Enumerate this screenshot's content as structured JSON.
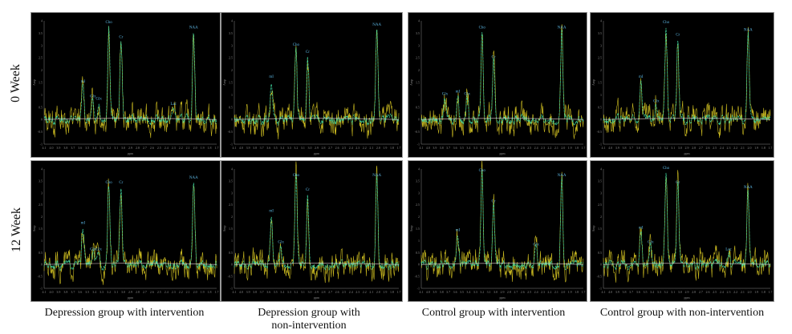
{
  "row_labels": [
    "0 Week",
    "12 Week"
  ],
  "column_labels": [
    "Depression group with intervention",
    "Depression group with non-intervention",
    "Control group with intervention",
    "Control group with non-intervention"
  ],
  "colors": {
    "raw": "#c8b820",
    "fit": "#3fd6a0",
    "baseline": "#e8d0d0",
    "peak_label": "#5ab4e0",
    "axis": "#888888"
  },
  "chart_data": [
    {
      "type": "line",
      "title": "Depression group with intervention, 0 Week",
      "xlabel": "ppm",
      "ylabel": "Amp",
      "xlim": [
        4.1,
        1.7
      ],
      "ylim": [
        -1,
        4
      ],
      "peaks": [
        {
          "label": "mI",
          "ppm": 3.56,
          "height": 1.4
        },
        {
          "label": "Glx",
          "ppm": 3.42,
          "height": 0.8
        },
        {
          "label": "Glx",
          "ppm": 3.34,
          "height": 0.7
        },
        {
          "label": "Cho",
          "ppm": 3.2,
          "height": 3.8
        },
        {
          "label": "Cr",
          "ppm": 3.03,
          "height": 3.2
        },
        {
          "label": "Lac",
          "ppm": 2.3,
          "height": 0.5
        },
        {
          "label": "NAA",
          "ppm": 2.02,
          "height": 3.6
        }
      ]
    },
    {
      "type": "line",
      "title": "Depression group with non-intervention, 0 Week",
      "xlabel": "ppm",
      "ylabel": "Amp",
      "xlim": [
        4.1,
        1.7
      ],
      "ylim": [
        -1,
        4
      ],
      "peaks": [
        {
          "label": "mI",
          "ppm": 3.56,
          "height": 1.6
        },
        {
          "label": "Cho",
          "ppm": 3.2,
          "height": 2.9
        },
        {
          "label": "Cr",
          "ppm": 3.03,
          "height": 2.6
        },
        {
          "label": "NAA",
          "ppm": 2.02,
          "height": 3.7
        }
      ]
    },
    {
      "type": "line",
      "title": "Control group with intervention, 0 Week",
      "xlabel": "ppm",
      "ylabel": "Amp",
      "xlim": [
        4.1,
        1.7
      ],
      "ylim": [
        -1,
        4
      ],
      "peaks": [
        {
          "label": "Glx",
          "ppm": 3.75,
          "height": 0.9
        },
        {
          "label": "mI",
          "ppm": 3.56,
          "height": 1.0
        },
        {
          "label": "Glx",
          "ppm": 3.42,
          "height": 0.9
        },
        {
          "label": "Cho",
          "ppm": 3.2,
          "height": 3.6
        },
        {
          "label": "Cr",
          "ppm": 3.03,
          "height": 2.4
        },
        {
          "label": "NAA",
          "ppm": 2.02,
          "height": 3.6
        }
      ]
    },
    {
      "type": "line",
      "title": "Control group with non-intervention, 0 Week",
      "xlabel": "ppm",
      "ylabel": "Amp",
      "xlim": [
        4.1,
        1.7
      ],
      "ylim": [
        -1,
        4
      ],
      "peaks": [
        {
          "label": "mI",
          "ppm": 3.56,
          "height": 1.6
        },
        {
          "label": "Glx",
          "ppm": 3.34,
          "height": 0.6
        },
        {
          "label": "Cho",
          "ppm": 3.2,
          "height": 3.8
        },
        {
          "label": "Cr",
          "ppm": 3.03,
          "height": 3.3
        },
        {
          "label": "NAA",
          "ppm": 2.02,
          "height": 3.5
        }
      ]
    },
    {
      "type": "line",
      "title": "Depression group with intervention, 12 Week",
      "xlabel": "ppm",
      "ylabel": "Amp",
      "xlim": [
        4.1,
        1.7
      ],
      "ylim": [
        -1,
        4
      ],
      "peaks": [
        {
          "label": "mI",
          "ppm": 3.56,
          "height": 1.6
        },
        {
          "label": "Glx",
          "ppm": 3.42,
          "height": 0.5
        },
        {
          "label": "Glx",
          "ppm": 3.34,
          "height": 0.5
        },
        {
          "label": "Cho",
          "ppm": 3.2,
          "height": 3.3
        },
        {
          "label": "Cr",
          "ppm": 3.03,
          "height": 3.3
        },
        {
          "label": "NAA",
          "ppm": 2.02,
          "height": 3.5
        }
      ]
    },
    {
      "type": "line",
      "title": "Depression group with non-intervention, 12 Week",
      "xlabel": "ppm",
      "ylabel": "Amp",
      "xlim": [
        4.1,
        1.7
      ],
      "ylim": [
        -1,
        4
      ],
      "peaks": [
        {
          "label": "mI",
          "ppm": 3.56,
          "height": 2.1
        },
        {
          "label": "Glx",
          "ppm": 3.42,
          "height": 0.8
        },
        {
          "label": "Cho",
          "ppm": 3.2,
          "height": 3.6
        },
        {
          "label": "Cr",
          "ppm": 3.03,
          "height": 3.0
        },
        {
          "label": "NAA",
          "ppm": 2.02,
          "height": 3.6
        }
      ]
    },
    {
      "type": "line",
      "title": "Control group with intervention, 12 Week",
      "xlabel": "ppm",
      "ylabel": "Amp",
      "xlim": [
        4.1,
        1.7
      ],
      "ylim": [
        -1,
        4
      ],
      "peaks": [
        {
          "label": "mI",
          "ppm": 3.56,
          "height": 1.3
        },
        {
          "label": "Cho",
          "ppm": 3.2,
          "height": 3.8
        },
        {
          "label": "Cr",
          "ppm": 3.03,
          "height": 2.5
        },
        {
          "label": "Glx",
          "ppm": 2.4,
          "height": 0.7
        },
        {
          "label": "NAA",
          "ppm": 2.02,
          "height": 3.6
        }
      ]
    },
    {
      "type": "line",
      "title": "Control group with non-intervention, 12 Week",
      "xlabel": "ppm",
      "ylabel": "Amp",
      "xlim": [
        4.1,
        1.7
      ],
      "ylim": [
        -1,
        4
      ],
      "peaks": [
        {
          "label": "mI",
          "ppm": 3.56,
          "height": 1.4
        },
        {
          "label": "Glx",
          "ppm": 3.42,
          "height": 0.8
        },
        {
          "label": "Cho",
          "ppm": 3.2,
          "height": 3.9
        },
        {
          "label": "Cr",
          "ppm": 3.03,
          "height": 3.3
        },
        {
          "label": "Lac",
          "ppm": 2.3,
          "height": 0.5
        },
        {
          "label": "NAA",
          "ppm": 2.02,
          "height": 3.1
        }
      ]
    }
  ]
}
